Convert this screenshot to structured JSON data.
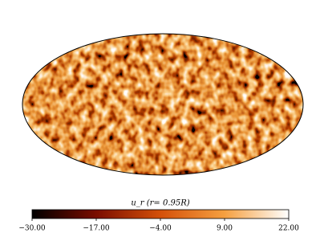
{
  "chart_data": {
    "type": "mollweide",
    "colorbar_label": "u_r (r= 0.95R)",
    "clim": [
      -30,
      22
    ],
    "colormap": [
      "#000000",
      "#7a0d00",
      "#d4500a",
      "#f5a040",
      "#ffffff"
    ],
    "colorbar_ticks": [
      {
        "value": -30,
        "label": "−30.00"
      },
      {
        "value": -17,
        "label": "−17.00"
      },
      {
        "value": -4,
        "label": "−4.00"
      },
      {
        "value": 9,
        "label": "9.00"
      },
      {
        "value": 22,
        "label": "22.00"
      }
    ]
  }
}
